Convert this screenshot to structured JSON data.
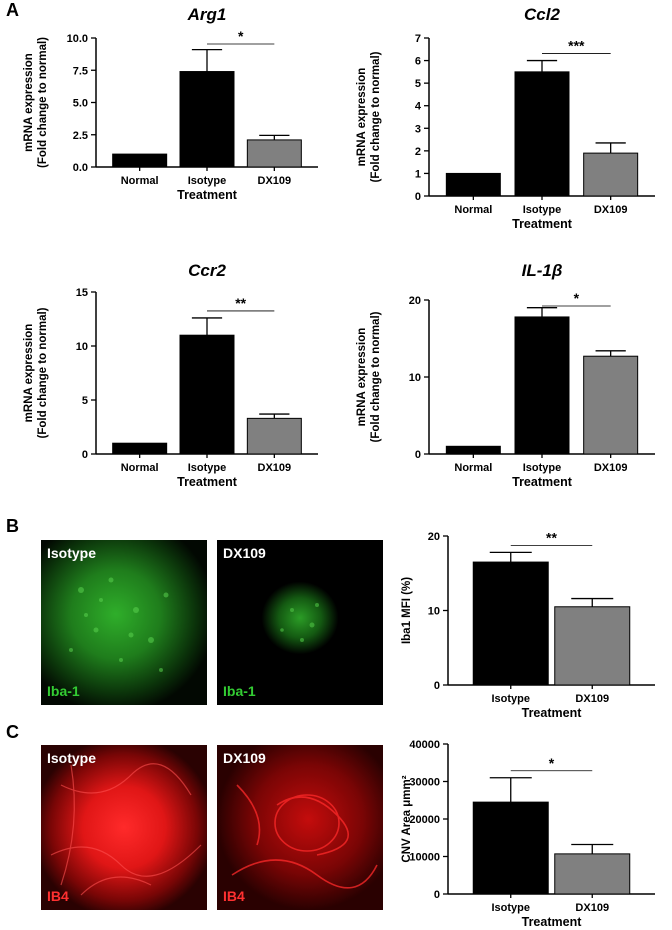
{
  "panel_labels": [
    "A",
    "B",
    "C"
  ],
  "chart_data": [
    {
      "type": "bar",
      "panel": "A",
      "title": "Arg1",
      "categories": [
        "Normal",
        "Isotype",
        "DX109"
      ],
      "values": [
        1.0,
        7.4,
        2.1
      ],
      "errors": [
        0,
        1.7,
        0.35
      ],
      "colors": [
        "#000000",
        "#000000",
        "#808080"
      ],
      "xlabel": "Treatment",
      "ylabel": [
        "mRNA expression",
        "(Fold change to normal)"
      ],
      "ylim": [
        0,
        10
      ],
      "yticks": [
        "0.0",
        "2.5",
        "5.0",
        "7.5",
        "10.0"
      ],
      "significance": {
        "between": [
          "Isotype",
          "DX109"
        ],
        "label": "*"
      }
    },
    {
      "type": "bar",
      "panel": "A",
      "title": "Ccl2",
      "categories": [
        "Normal",
        "Isotype",
        "DX109"
      ],
      "values": [
        1.0,
        5.5,
        1.9
      ],
      "errors": [
        0,
        0.5,
        0.45
      ],
      "colors": [
        "#000000",
        "#000000",
        "#808080"
      ],
      "xlabel": "Treatment",
      "ylabel": [
        "mRNA expression",
        "(Fold change to normal)"
      ],
      "ylim": [
        0,
        7
      ],
      "yticks": [
        "0",
        "1",
        "2",
        "3",
        "4",
        "5",
        "6",
        "7"
      ],
      "significance": {
        "between": [
          "Isotype",
          "DX109"
        ],
        "label": "***"
      }
    },
    {
      "type": "bar",
      "panel": "A",
      "title": "Ccr2",
      "categories": [
        "Normal",
        "Isotype",
        "DX109"
      ],
      "values": [
        1.0,
        11.0,
        3.3
      ],
      "errors": [
        0,
        1.6,
        0.4
      ],
      "colors": [
        "#000000",
        "#000000",
        "#808080"
      ],
      "xlabel": "Treatment",
      "ylabel": [
        "mRNA expression",
        "(Fold change to normal)"
      ],
      "ylim": [
        0,
        15
      ],
      "yticks": [
        "0",
        "5",
        "10",
        "15"
      ],
      "significance": {
        "between": [
          "Isotype",
          "DX109"
        ],
        "label": "**"
      }
    },
    {
      "type": "bar",
      "panel": "A",
      "title": "IL-1β",
      "categories": [
        "Normal",
        "Isotype",
        "DX109"
      ],
      "values": [
        1.0,
        17.8,
        12.7
      ],
      "errors": [
        0,
        1.2,
        0.7
      ],
      "colors": [
        "#000000",
        "#000000",
        "#808080"
      ],
      "xlabel": "Treatment",
      "ylabel": [
        "mRNA expression",
        "(Fold change to normal)"
      ],
      "ylim": [
        0,
        20
      ],
      "yticks": [
        "0",
        "10",
        "20"
      ],
      "significance": {
        "between": [
          "Isotype",
          "DX109"
        ],
        "label": "*"
      }
    },
    {
      "type": "bar",
      "panel": "B",
      "title": "",
      "categories": [
        "Isotype",
        "DX109"
      ],
      "values": [
        16.5,
        10.5
      ],
      "errors": [
        1.3,
        1.1
      ],
      "colors": [
        "#000000",
        "#808080"
      ],
      "xlabel": "Treatment",
      "ylabel": [
        "Iba1 MFI (%)"
      ],
      "ylim": [
        0,
        20
      ],
      "yticks": [
        "0",
        "10",
        "20"
      ],
      "significance": {
        "between": [
          "Isotype",
          "DX109"
        ],
        "label": "**"
      }
    },
    {
      "type": "bar",
      "panel": "C",
      "title": "",
      "categories": [
        "Isotype",
        "DX109"
      ],
      "values": [
        24500,
        10700
      ],
      "errors": [
        6500,
        2500
      ],
      "colors": [
        "#000000",
        "#808080"
      ],
      "xlabel": "Treatment",
      "ylabel": [
        "CNV Area μmm²"
      ],
      "ylim": [
        0,
        40000
      ],
      "yticks": [
        "0",
        "10000",
        "20000",
        "30000",
        "40000"
      ],
      "significance": {
        "between": [
          "Isotype",
          "DX109"
        ],
        "label": "*"
      }
    }
  ],
  "images": {
    "b_left": {
      "label": "Isotype",
      "stain": "Iba-1",
      "stain_color": "#33cc33"
    },
    "b_right": {
      "label": "DX109",
      "stain": "Iba-1",
      "stain_color": "#33cc33"
    },
    "c_left": {
      "label": "Isotype",
      "stain": "IB4",
      "stain_color": "#ff3030"
    },
    "c_right": {
      "label": "DX109",
      "stain": "IB4",
      "stain_color": "#ff3030"
    }
  }
}
